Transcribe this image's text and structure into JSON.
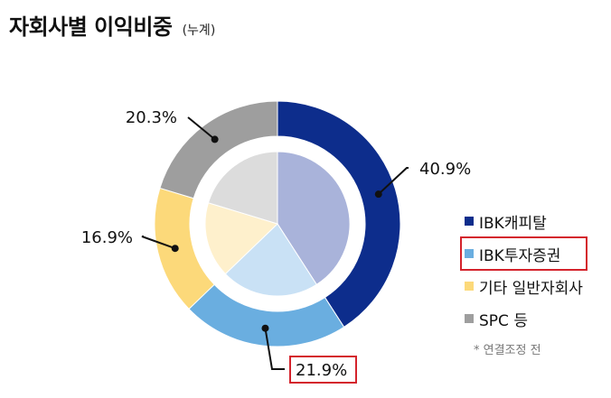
{
  "title": "자회사별 이익비중",
  "subtitle": "(누계)",
  "note": "* 연결조정 전",
  "chart_data": {
    "type": "pie",
    "categories": [
      "IBK캐피탈",
      "IBK투자증권",
      "기타 일반자회사",
      "SPC 등"
    ],
    "values": [
      40.9,
      21.9,
      16.9,
      20.3
    ],
    "labels": [
      "40.9%",
      "21.9%",
      "16.9%",
      "20.3%"
    ],
    "colors": [
      "#0d2d8c",
      "#6aaee0",
      "#fcd97a",
      "#9e9e9e"
    ],
    "inner_colors": [
      "#a9b3da",
      "#c9e1f5",
      "#fef0cc",
      "#dcdcdc"
    ],
    "highlight": [
      "IBK투자증권",
      "21.9%"
    ],
    "legend_position": "right"
  }
}
